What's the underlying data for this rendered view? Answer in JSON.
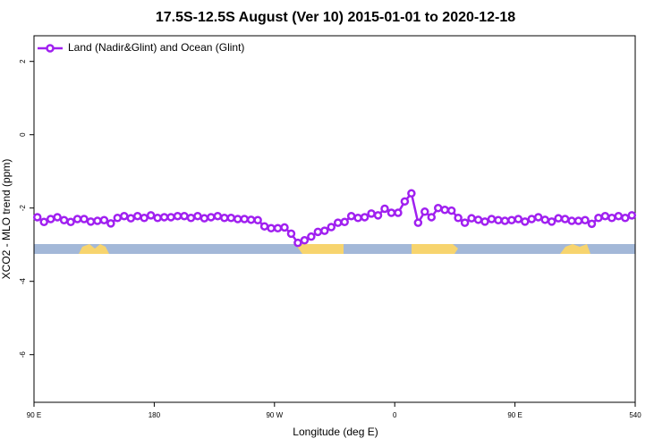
{
  "chart_data": {
    "type": "line",
    "title": "17.5S-12.5S August (Ver 10)   2015-01-01 to 2020-12-18",
    "x_label": "Longitude (deg E)",
    "y_label": "XCO2 - MLO trend (ppm)",
    "xlim": [
      90,
      540
    ],
    "xticks": [
      {
        "value": 90,
        "label": "90 E"
      },
      180,
      {
        "value": 270,
        "label": "90 W"
      },
      {
        "value": 360,
        "label": "0"
      },
      {
        "value": 450,
        "label": "90 E"
      },
      540
    ],
    "ylim": [
      -7.3,
      2.7
    ],
    "yticks": [
      -6,
      -4,
      -2,
      0,
      2
    ],
    "legend": "top-left",
    "x": [
      92.5,
      97.5,
      102.5,
      107.5,
      112.5,
      117.5,
      122.5,
      127.5,
      132.5,
      137.5,
      142.5,
      147.5,
      152.5,
      157.5,
      162.5,
      167.5,
      172.5,
      177.5,
      182.5,
      187.5,
      192.5,
      197.5,
      202.5,
      207.5,
      212.5,
      217.5,
      222.5,
      227.5,
      232.5,
      237.5,
      242.5,
      247.5,
      252.5,
      257.5,
      262.5,
      267.5,
      272.5,
      277.5,
      282.5,
      287.5,
      292.5,
      297.5,
      302.5,
      307.5,
      312.5,
      317.5,
      322.5,
      327.5,
      332.5,
      337.5,
      342.5,
      347.5,
      352.5,
      357.5,
      362.5,
      367.5,
      372.5,
      377.5,
      382.5,
      387.5,
      392.5,
      397.5,
      402.5,
      407.5,
      412.5,
      417.5,
      422.5,
      427.5,
      432.5,
      437.5,
      442.5,
      447.5,
      452.5,
      457.5,
      462.5,
      467.5,
      472.5,
      477.5,
      482.5,
      487.5,
      492.5,
      497.5,
      502.5,
      507.5,
      512.5,
      517.5,
      522.5,
      527.5,
      532.5,
      537.5
    ],
    "series": [
      {
        "name": "Land (Nadir&Glint) and Ocean (Glint)",
        "color": "#a020f0",
        "values": [
          -2.25,
          -2.38,
          -2.3,
          -2.25,
          -2.33,
          -2.38,
          -2.3,
          -2.3,
          -2.37,
          -2.35,
          -2.33,
          -2.42,
          -2.27,
          -2.22,
          -2.28,
          -2.22,
          -2.27,
          -2.2,
          -2.27,
          -2.25,
          -2.25,
          -2.22,
          -2.22,
          -2.27,
          -2.22,
          -2.28,
          -2.25,
          -2.22,
          -2.27,
          -2.27,
          -2.3,
          -2.3,
          -2.32,
          -2.33,
          -2.5,
          -2.55,
          -2.55,
          -2.53,
          -2.7,
          -2.95,
          -2.88,
          -2.78,
          -2.65,
          -2.62,
          -2.52,
          -2.4,
          -2.38,
          -2.22,
          -2.27,
          -2.25,
          -2.15,
          -2.2,
          -2.02,
          -2.13,
          -2.13,
          -1.82,
          -1.6,
          -2.4,
          -2.1,
          -2.25,
          -2.0,
          -2.05,
          -2.07,
          -2.27,
          -2.4,
          -2.28,
          -2.32,
          -2.37,
          -2.3,
          -2.33,
          -2.35,
          -2.33,
          -2.3,
          -2.37,
          -2.3,
          -2.25,
          -2.32,
          -2.37,
          -2.28,
          -2.3,
          -2.35,
          -2.35,
          -2.33,
          -2.43,
          -2.27,
          -2.22,
          -2.27,
          -2.22,
          -2.27,
          -2.2
        ]
      }
    ]
  }
}
